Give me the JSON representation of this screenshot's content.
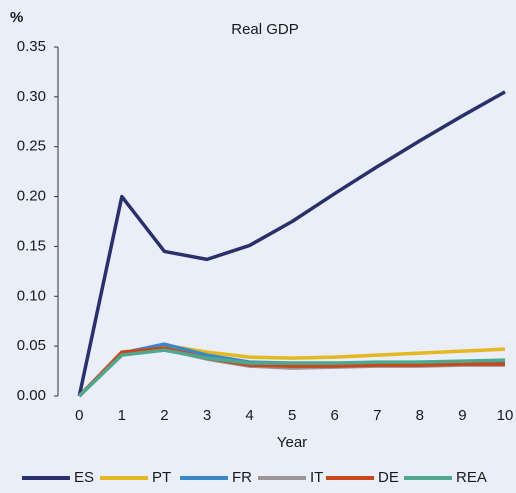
{
  "chart_data": {
    "type": "line",
    "title": "Real GDP",
    "y_unit": "%",
    "x_label": "Year",
    "x": [
      0,
      1,
      2,
      3,
      4,
      5,
      6,
      7,
      8,
      9,
      10
    ],
    "xlim": [
      -0.5,
      10
    ],
    "xticks": [
      0,
      1,
      2,
      3,
      4,
      5,
      6,
      7,
      8,
      9,
      10
    ],
    "ylim": [
      0,
      0.35
    ],
    "yticks": [
      {
        "value": 0,
        "label": "0.00"
      },
      {
        "value": 0.05,
        "label": "0.05"
      },
      {
        "value": 0.1,
        "label": "0.10"
      },
      {
        "value": 0.15,
        "label": "0.15"
      },
      {
        "value": 0.2,
        "label": "0.20"
      },
      {
        "value": 0.25,
        "label": "0.25"
      },
      {
        "value": 0.3,
        "label": "0.30"
      },
      {
        "value": 0.35,
        "label": "0.35"
      }
    ],
    "grid": false,
    "legend": "bottom",
    "series": [
      {
        "name": "ES",
        "color": "#2b2f6b",
        "values": [
          0,
          0.2,
          0.145,
          0.137,
          0.151,
          0.175,
          0.203,
          0.23,
          0.256,
          0.281,
          0.305
        ]
      },
      {
        "name": "PT",
        "color": "#e3b820",
        "values": [
          0,
          0.043,
          0.051,
          0.044,
          0.039,
          0.038,
          0.039,
          0.041,
          0.043,
          0.045,
          0.047
        ]
      },
      {
        "name": "FR",
        "color": "#3a87c9",
        "values": [
          0,
          0.043,
          0.052,
          0.041,
          0.034,
          0.033,
          0.033,
          0.033,
          0.034,
          0.034,
          0.035
        ]
      },
      {
        "name": "IT",
        "color": "#9b9593",
        "values": [
          0,
          0.043,
          0.047,
          0.037,
          0.03,
          0.028,
          0.029,
          0.03,
          0.03,
          0.031,
          0.031
        ]
      },
      {
        "name": "DE",
        "color": "#c8471c",
        "values": [
          0,
          0.044,
          0.048,
          0.038,
          0.031,
          0.03,
          0.03,
          0.031,
          0.031,
          0.032,
          0.032
        ]
      },
      {
        "name": "REA",
        "color": "#4fa88e",
        "values": [
          0,
          0.041,
          0.046,
          0.038,
          0.033,
          0.033,
          0.033,
          0.034,
          0.034,
          0.035,
          0.036
        ]
      }
    ]
  }
}
